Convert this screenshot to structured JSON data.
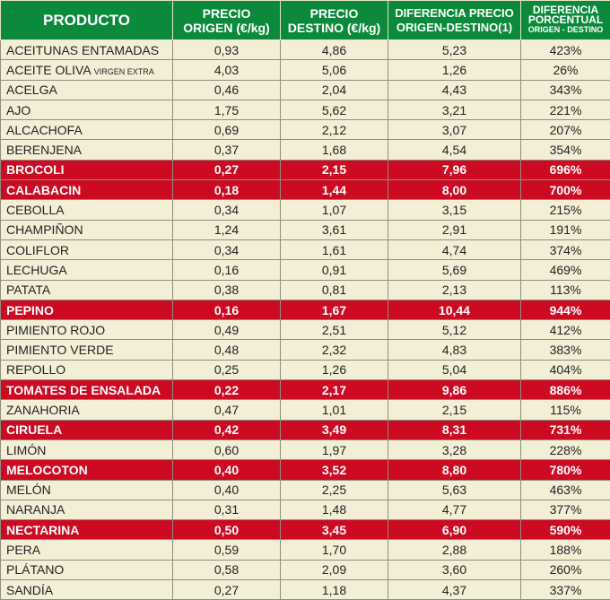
{
  "headers": {
    "product": "PRODUCTO",
    "origin_1": "PRECIO",
    "origin_2": "ORIGEN (€/kg)",
    "dest_1": "PRECIO",
    "dest_2": "DESTINO (€/kg)",
    "diff_1": "DIFERENCIA PRECIO",
    "diff_2": "ORIGEN-DESTINO(1)",
    "pct_1": "DIFERENCIA",
    "pct_2": "PORCENTUAL",
    "pct_3": "ORIGEN - DESTINO"
  },
  "colors": {
    "header": "#0b8a3c",
    "row": "#f3eed6",
    "highlight": "#cc0a22"
  },
  "rows": [
    {
      "name": "ACEITUNAS ENTAMADAS",
      "origin": "0,93",
      "dest": "4,86",
      "diff": "5,23",
      "pct": "423%",
      "hl": false
    },
    {
      "name": "ACEITE OLIVA",
      "sub": "VIRGEN EXTRA",
      "origin": "4,03",
      "dest": "5,06",
      "diff": "1,26",
      "pct": "26%",
      "hl": false
    },
    {
      "name": "ACELGA",
      "origin": "0,46",
      "dest": "2,04",
      "diff": "4,43",
      "pct": "343%",
      "hl": false
    },
    {
      "name": "AJO",
      "origin": "1,75",
      "dest": "5,62",
      "diff": "3,21",
      "pct": "221%",
      "hl": false
    },
    {
      "name": "ALCACHOFA",
      "origin": "0,69",
      "dest": "2,12",
      "diff": "3,07",
      "pct": "207%",
      "hl": false
    },
    {
      "name": "BERENJENA",
      "origin": "0,37",
      "dest": "1,68",
      "diff": "4,54",
      "pct": "354%",
      "hl": false
    },
    {
      "name": "BROCOLI",
      "origin": "0,27",
      "dest": "2,15",
      "diff": "7,96",
      "pct": "696%",
      "hl": true
    },
    {
      "name": "CALABACIN",
      "origin": "0,18",
      "dest": "1,44",
      "diff": "8,00",
      "pct": "700%",
      "hl": true
    },
    {
      "name": "CEBOLLA",
      "origin": "0,34",
      "dest": "1,07",
      "diff": "3,15",
      "pct": "215%",
      "hl": false
    },
    {
      "name": "CHAMPIÑON",
      "origin": "1,24",
      "dest": "3,61",
      "diff": "2,91",
      "pct": "191%",
      "hl": false
    },
    {
      "name": "COLIFLOR",
      "origin": "0,34",
      "dest": "1,61",
      "diff": "4,74",
      "pct": "374%",
      "hl": false
    },
    {
      "name": "LECHUGA",
      "origin": "0,16",
      "dest": "0,91",
      "diff": "5,69",
      "pct": "469%",
      "hl": false
    },
    {
      "name": "PATATA",
      "origin": "0,38",
      "dest": "0,81",
      "diff": "2,13",
      "pct": "113%",
      "hl": false
    },
    {
      "name": "PEPINO",
      "origin": "0,16",
      "dest": "1,67",
      "diff": "10,44",
      "pct": "944%",
      "hl": true
    },
    {
      "name": "PIMIENTO ROJO",
      "origin": "0,49",
      "dest": "2,51",
      "diff": "5,12",
      "pct": "412%",
      "hl": false
    },
    {
      "name": "PIMIENTO VERDE",
      "origin": "0,48",
      "dest": "2,32",
      "diff": "4,83",
      "pct": "383%",
      "hl": false
    },
    {
      "name": "REPOLLO",
      "origin": "0,25",
      "dest": "1,26",
      "diff": "5,04",
      "pct": "404%",
      "hl": false
    },
    {
      "name": "TOMATES DE ENSALADA",
      "origin": "0,22",
      "dest": "2,17",
      "diff": "9,86",
      "pct": "886%",
      "hl": true
    },
    {
      "name": "ZANAHORIA",
      "origin": "0,47",
      "dest": "1,01",
      "diff": "2,15",
      "pct": "115%",
      "hl": false
    },
    {
      "name": "CIRUELA",
      "origin": "0,42",
      "dest": "3,49",
      "diff": "8,31",
      "pct": "731%",
      "hl": true
    },
    {
      "name": "LIMÓN",
      "origin": "0,60",
      "dest": "1,97",
      "diff": "3,28",
      "pct": "228%",
      "hl": false
    },
    {
      "name": "MELOCOTON",
      "origin": "0,40",
      "dest": "3,52",
      "diff": "8,80",
      "pct": "780%",
      "hl": true
    },
    {
      "name": "MELÓN",
      "origin": "0,40",
      "dest": "2,25",
      "diff": "5,63",
      "pct": "463%",
      "hl": false
    },
    {
      "name": "NARANJA",
      "origin": "0,31",
      "dest": "1,48",
      "diff": "4,77",
      "pct": "377%",
      "hl": false
    },
    {
      "name": "NECTARINA",
      "origin": "0,50",
      "dest": "3,45",
      "diff": "6,90",
      "pct": "590%",
      "hl": true
    },
    {
      "name": "PERA",
      "origin": "0,59",
      "dest": "1,70",
      "diff": "2,88",
      "pct": "188%",
      "hl": false
    },
    {
      "name": "PLÁTANO",
      "origin": "0,58",
      "dest": "2,09",
      "diff": "3,60",
      "pct": "260%",
      "hl": false
    },
    {
      "name": "SANDÍA",
      "origin": "0,27",
      "dest": "1,18",
      "diff": "4,37",
      "pct": "337%",
      "hl": false
    }
  ]
}
